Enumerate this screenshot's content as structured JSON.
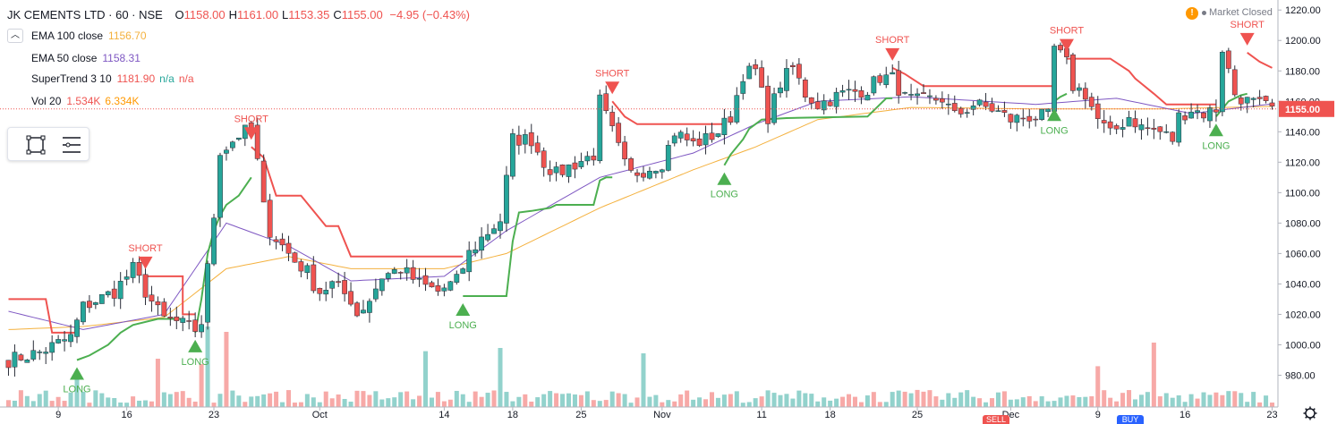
{
  "header": {
    "symbol": "JK CEMENTS LTD · 60 · NSE",
    "ohlc": [
      {
        "k": "O",
        "v": "1158.00"
      },
      {
        "k": "H",
        "v": "1161.00"
      },
      {
        "k": "L",
        "v": "1153.35"
      },
      {
        "k": "C",
        "v": "1155.00"
      }
    ],
    "change": "−4.95 (−0.43%)"
  },
  "indicators": [
    {
      "name": "EMA 100 close",
      "values": [
        "1156.70"
      ],
      "colors": [
        "#f4b13e"
      ]
    },
    {
      "name": "EMA 50 close",
      "values": [
        "1158.31"
      ],
      "colors": [
        "#7e57c2"
      ]
    },
    {
      "name": "SuperTrend 3 10",
      "values": [
        "1181.90",
        "n/a",
        "n/a"
      ],
      "colors": [
        "#ef5350",
        "#26a69a",
        "#ef5350"
      ]
    },
    {
      "name": "Vol 20",
      "values": [
        "1.534K",
        "6.334K"
      ],
      "colors": [
        "#ef5350",
        "#ff9800"
      ]
    }
  ],
  "collapse_icon": "chevron-up-icon",
  "market_status": {
    "text": "Market Closed",
    "icon": "warning-icon"
  },
  "bottom_tabs": {
    "sell": "SELL",
    "buy": "BUY"
  },
  "colors": {
    "up": "#26a69a",
    "down": "#ef5350",
    "ema100": "#f4b13e",
    "ema50": "#7e57c2",
    "st_up": "#4caf50",
    "st_down": "#ef5350"
  },
  "chart_data": {
    "type": "candlestick",
    "interval": "60",
    "last_price": 1155.0,
    "y_axis": {
      "ticks": [
        980,
        1000,
        1020,
        1040,
        1060,
        1080,
        1100,
        1120,
        1140,
        1160,
        1180,
        1200,
        1220
      ],
      "range": [
        965,
        1226
      ],
      "last_label": "1155.00"
    },
    "x_axis": {
      "labels": [
        {
          "t": "9",
          "i": 8
        },
        {
          "t": "16",
          "i": 19
        },
        {
          "t": "23",
          "i": 33
        },
        {
          "t": "Oct",
          "i": 50
        },
        {
          "t": "14",
          "i": 70
        },
        {
          "t": "18",
          "i": 81
        },
        {
          "t": "25",
          "i": 92
        },
        {
          "t": "Nov",
          "i": 105
        },
        {
          "t": "11",
          "i": 121
        },
        {
          "t": "18",
          "i": 132
        },
        {
          "t": "25",
          "i": 146
        },
        {
          "t": "Dec",
          "i": 161
        },
        {
          "t": "9",
          "i": 175
        },
        {
          "t": "16",
          "i": 189
        },
        {
          "t": "23",
          "i": 203
        }
      ],
      "n_bars": 204
    },
    "anchors": {
      "close": [
        [
          0,
          990
        ],
        [
          5,
          995
        ],
        [
          10,
          1005
        ],
        [
          12,
          1025
        ],
        [
          17,
          1035
        ],
        [
          20,
          1050
        ],
        [
          22,
          1035
        ],
        [
          24,
          1022
        ],
        [
          25,
          1017
        ],
        [
          27,
          1015
        ],
        [
          30,
          1010
        ],
        [
          31,
          1015
        ],
        [
          33,
          1085
        ],
        [
          34,
          1128
        ],
        [
          35,
          1130
        ],
        [
          37,
          1138
        ],
        [
          39,
          1142
        ],
        [
          40,
          1120
        ],
        [
          41,
          1090
        ],
        [
          42,
          1075
        ],
        [
          44,
          1065
        ],
        [
          46,
          1055
        ],
        [
          48,
          1048
        ],
        [
          49,
          1040
        ],
        [
          50,
          1035
        ],
        [
          52,
          1040
        ],
        [
          55,
          1030
        ],
        [
          56,
          1020
        ],
        [
          58,
          1030
        ],
        [
          60,
          1045
        ],
        [
          63,
          1050
        ],
        [
          66,
          1040
        ],
        [
          69,
          1035
        ],
        [
          72,
          1042
        ],
        [
          74,
          1060
        ],
        [
          76,
          1070
        ],
        [
          79,
          1082
        ],
        [
          81,
          1135
        ],
        [
          84,
          1135
        ],
        [
          86,
          1120
        ],
        [
          88,
          1112
        ],
        [
          90,
          1117
        ],
        [
          94,
          1125
        ],
        [
          95,
          1160
        ],
        [
          97,
          1140
        ],
        [
          99,
          1118
        ],
        [
          100,
          1112
        ],
        [
          102,
          1115
        ],
        [
          105,
          1120
        ],
        [
          107,
          1140
        ],
        [
          110,
          1132
        ],
        [
          112,
          1135
        ],
        [
          114,
          1140
        ],
        [
          116,
          1150
        ],
        [
          118,
          1178
        ],
        [
          120,
          1180
        ],
        [
          122,
          1150
        ],
        [
          124,
          1172
        ],
        [
          126,
          1182
        ],
        [
          128,
          1165
        ],
        [
          130,
          1158
        ],
        [
          134,
          1165
        ],
        [
          138,
          1168
        ],
        [
          140,
          1176
        ],
        [
          142,
          1175
        ],
        [
          144,
          1162
        ],
        [
          146,
          1160
        ],
        [
          150,
          1162
        ],
        [
          152,
          1150
        ],
        [
          155,
          1158
        ],
        [
          158,
          1155
        ],
        [
          161,
          1148
        ],
        [
          164,
          1150
        ],
        [
          167,
          1150
        ],
        [
          168,
          1195
        ],
        [
          170,
          1185
        ],
        [
          171,
          1170
        ],
        [
          173,
          1165
        ],
        [
          175,
          1148
        ],
        [
          177,
          1138
        ],
        [
          180,
          1150
        ],
        [
          182,
          1143
        ],
        [
          185,
          1140
        ],
        [
          187,
          1135
        ],
        [
          188,
          1150
        ],
        [
          190,
          1155
        ],
        [
          192,
          1152
        ],
        [
          194,
          1155
        ],
        [
          195,
          1195
        ],
        [
          196,
          1180
        ],
        [
          197,
          1165
        ],
        [
          199,
          1160
        ],
        [
          203,
          1155
        ]
      ]
    },
    "ema100_anchors": [
      [
        0,
        1010
      ],
      [
        12,
        1012
      ],
      [
        25,
        1018
      ],
      [
        35,
        1050
      ],
      [
        45,
        1058
      ],
      [
        55,
        1050
      ],
      [
        70,
        1050
      ],
      [
        80,
        1060
      ],
      [
        95,
        1090
      ],
      [
        110,
        1115
      ],
      [
        120,
        1130
      ],
      [
        130,
        1148
      ],
      [
        145,
        1156
      ],
      [
        165,
        1155
      ],
      [
        185,
        1155
      ],
      [
        203,
        1156.7
      ]
    ],
    "ema50_anchors": [
      [
        0,
        1022
      ],
      [
        12,
        1010
      ],
      [
        25,
        1020
      ],
      [
        35,
        1080
      ],
      [
        45,
        1065
      ],
      [
        55,
        1042
      ],
      [
        70,
        1045
      ],
      [
        80,
        1075
      ],
      [
        95,
        1110
      ],
      [
        110,
        1126
      ],
      [
        120,
        1145
      ],
      [
        130,
        1160
      ],
      [
        145,
        1163
      ],
      [
        165,
        1158
      ],
      [
        178,
        1162
      ],
      [
        190,
        1152
      ],
      [
        203,
        1158.31
      ]
    ],
    "supertrend_segments": [
      {
        "dir": "down",
        "pts": [
          [
            0,
            1030
          ],
          [
            6,
            1030
          ],
          [
            7,
            1008
          ],
          [
            11,
            1008
          ]
        ]
      },
      {
        "dir": "up",
        "pts": [
          [
            11,
            990
          ],
          [
            13,
            993
          ],
          [
            16,
            1000
          ],
          [
            18,
            1008
          ],
          [
            20,
            1013
          ],
          [
            24,
            1017
          ],
          [
            28,
            1017
          ]
        ]
      },
      {
        "dir": "down",
        "pts": [
          [
            22,
            1045
          ],
          [
            28,
            1045
          ],
          [
            28,
            1020
          ],
          [
            30,
            1020
          ]
        ]
      },
      {
        "dir": "up",
        "pts": [
          [
            30,
            1008
          ],
          [
            31,
            1030
          ],
          [
            32,
            1060
          ],
          [
            33,
            1075
          ],
          [
            34,
            1085
          ],
          [
            35,
            1092
          ],
          [
            37,
            1098
          ],
          [
            39,
            1110
          ]
        ]
      },
      {
        "dir": "down",
        "pts": [
          [
            39,
            1130
          ],
          [
            41,
            1123
          ],
          [
            43,
            1098
          ],
          [
            47,
            1098
          ],
          [
            49,
            1088
          ],
          [
            51,
            1078
          ],
          [
            53,
            1078
          ],
          [
            55,
            1058
          ],
          [
            73,
            1058
          ]
        ]
      },
      {
        "dir": "up",
        "pts": [
          [
            73,
            1032
          ],
          [
            80,
            1032
          ],
          [
            81,
            1068
          ],
          [
            82,
            1087
          ],
          [
            84,
            1088
          ],
          [
            87,
            1090
          ],
          [
            88,
            1092
          ],
          [
            94,
            1092
          ],
          [
            95,
            1108
          ],
          [
            96,
            1110
          ],
          [
            97,
            1110
          ]
        ]
      },
      {
        "dir": "down",
        "pts": [
          [
            97,
            1160
          ],
          [
            99,
            1150
          ],
          [
            101,
            1145
          ],
          [
            115,
            1145
          ]
        ]
      },
      {
        "dir": "up",
        "pts": [
          [
            115,
            1118
          ],
          [
            116,
            1125
          ],
          [
            118,
            1135
          ],
          [
            119,
            1142
          ],
          [
            121,
            1148
          ],
          [
            125,
            1149
          ],
          [
            138,
            1150
          ],
          [
            140,
            1158
          ],
          [
            141,
            1162
          ],
          [
            142,
            1162
          ]
        ]
      },
      {
        "dir": "down",
        "pts": [
          [
            142,
            1182
          ],
          [
            144,
            1178
          ],
          [
            147,
            1170
          ],
          [
            167,
            1170
          ],
          [
            168,
            1170
          ]
        ]
      },
      {
        "dir": "up",
        "pts": [
          [
            168,
            1160
          ],
          [
            169,
            1163
          ],
          [
            170,
            1165
          ]
        ]
      },
      {
        "dir": "down",
        "pts": [
          [
            170,
            1188
          ],
          [
            177,
            1188
          ],
          [
            180,
            1180
          ],
          [
            181,
            1175
          ],
          [
            184,
            1165
          ],
          [
            186,
            1158
          ],
          [
            194,
            1158
          ]
        ]
      },
      {
        "dir": "up",
        "pts": [
          [
            194,
            1150
          ],
          [
            196,
            1160
          ],
          [
            198,
            1164
          ],
          [
            199,
            1165
          ]
        ]
      },
      {
        "dir": "down",
        "pts": [
          [
            199,
            1192
          ],
          [
            201,
            1186
          ],
          [
            203,
            1182
          ]
        ]
      }
    ],
    "signals": [
      {
        "type": "LONG",
        "i": 11
      },
      {
        "type": "SHORT",
        "i": 22
      },
      {
        "type": "LONG",
        "i": 30
      },
      {
        "type": "SHORT",
        "i": 39
      },
      {
        "type": "LONG",
        "i": 73
      },
      {
        "type": "SHORT",
        "i": 97
      },
      {
        "type": "LONG",
        "i": 115
      },
      {
        "type": "SHORT",
        "i": 142
      },
      {
        "type": "LONG",
        "i": 168
      },
      {
        "type": "SHORT",
        "i": 170
      },
      {
        "type": "LONG",
        "i": 194
      },
      {
        "type": "SHORT",
        "i": 199
      }
    ],
    "volume": {
      "spikes": [
        [
          32,
          0.75,
          "up"
        ],
        [
          31,
          0.4,
          "down"
        ],
        [
          35,
          0.7,
          "down"
        ],
        [
          24,
          0.45,
          "down"
        ],
        [
          67,
          0.52,
          "up"
        ],
        [
          79,
          0.55,
          "up"
        ],
        [
          102,
          0.5,
          "up"
        ],
        [
          184,
          0.6,
          "down"
        ],
        [
          175,
          0.38,
          "down"
        ],
        [
          11,
          0.3,
          "up"
        ]
      ]
    },
    "grid": false,
    "legend": "top-left"
  }
}
